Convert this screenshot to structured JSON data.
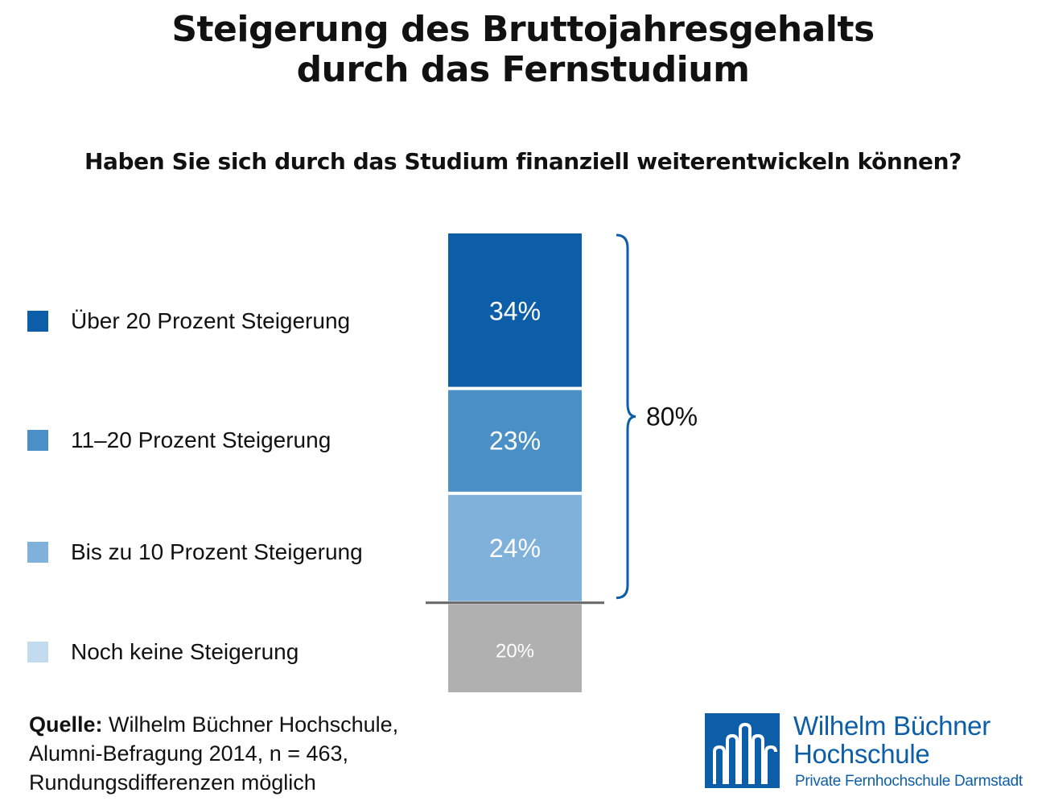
{
  "title_line1": "Steigerung des Bruttojahresgehalts",
  "title_line2": "durch das Fernstudium",
  "subtitle": "Haben Sie sich durch das Studium finanziell weiterentwickeln können?",
  "chart_data": {
    "type": "bar",
    "stacked": true,
    "categories": [
      "Über 20 Prozent Steigerung",
      "11–20 Prozent Steigerung",
      "Bis zu 10 Prozent Steigerung",
      "Noch keine Steigerung"
    ],
    "values": [
      34,
      23,
      24,
      20
    ],
    "value_labels": [
      "34%",
      "23%",
      "24%",
      "20%"
    ],
    "colors": [
      "#0d5ea8",
      "#4a90c7",
      "#7fb1da",
      "#b1b0b1"
    ],
    "legend_colors": [
      "#0d5ea8",
      "#4a90c7",
      "#7fb1da",
      "#c3dbef"
    ],
    "bracket_label": "80%",
    "bracket_color": "#0d5ea8",
    "separator_color": "#666666",
    "legend_position": "left"
  },
  "source": {
    "label": "Quelle:",
    "line1": " Wilhelm Büchner Hochschule,",
    "line2": "Alumni-Befragung 2014, n = 463,",
    "line3": "Rundungsdifferenzen möglich"
  },
  "logo": {
    "name_line1": "Wilhelm Büchner",
    "name_line2": "Hochschule",
    "tagline": "Private Fernhochschule Darmstadt",
    "color": "#0d5ea8"
  }
}
